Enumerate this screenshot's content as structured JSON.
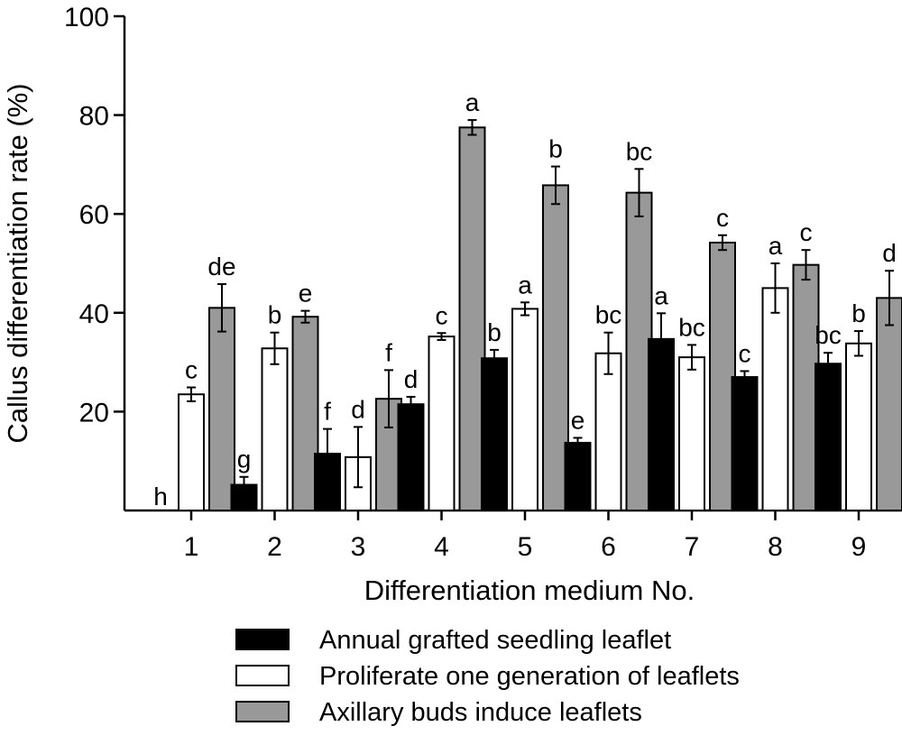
{
  "chart_data": {
    "type": "bar",
    "xlabel": "Differentiation medium No.",
    "ylabel": "Callus differentiation rate (%)",
    "ylim": [
      0,
      100
    ],
    "yticks": [
      20,
      40,
      60,
      80,
      100
    ],
    "categories": [
      "1",
      "2",
      "3",
      "4",
      "5",
      "6",
      "7",
      "8",
      "9"
    ],
    "series": [
      {
        "name": "Annual grafted seedling leaflet",
        "color": "#000000",
        "values": [
          0,
          5.2,
          11.5,
          21.5,
          30.8,
          13.7,
          34.7,
          27.0,
          29.7
        ],
        "errors": [
          0,
          1.6,
          5.0,
          1.5,
          1.7,
          1.0,
          5.2,
          1.2,
          2.2
        ],
        "labels": [
          "h",
          "g",
          "f",
          "d",
          "b",
          "e",
          "a",
          "c",
          "bc"
        ]
      },
      {
        "name": "Proliferate one generation of leaflets",
        "color": "#ffffff",
        "values": [
          23.5,
          32.8,
          10.8,
          35.2,
          40.8,
          31.8,
          31.0,
          45.0,
          33.8
        ],
        "errors": [
          1.4,
          3.2,
          6.1,
          0.7,
          1.3,
          4.2,
          2.5,
          5.0,
          2.5
        ],
        "labels": [
          "c",
          "b",
          "d",
          "c",
          "a",
          "bc",
          "bc",
          "a",
          "b"
        ]
      },
      {
        "name": "Axillary buds induce leaflets",
        "color": "#999999",
        "values": [
          41.0,
          39.2,
          22.6,
          77.5,
          65.8,
          64.3,
          54.2,
          49.7,
          43.0
        ],
        "errors": [
          4.8,
          1.2,
          5.8,
          1.5,
          3.8,
          4.8,
          1.5,
          3.0,
          5.5
        ],
        "labels": [
          "de",
          "e",
          "f",
          "a",
          "b",
          "bc",
          "c",
          "c",
          "d"
        ]
      }
    ],
    "legend_position": "bottom-center"
  }
}
